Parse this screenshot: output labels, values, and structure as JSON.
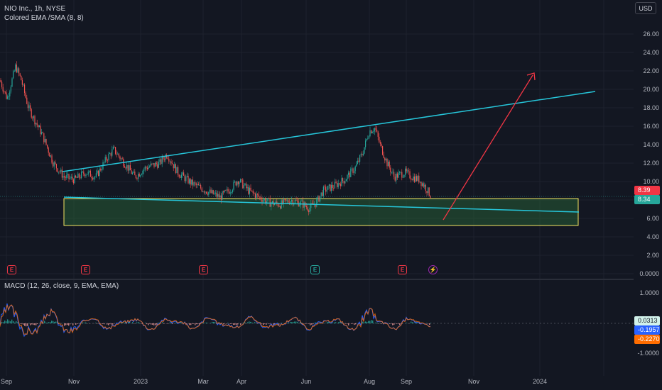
{
  "header": {
    "title": "NIO Inc., 1h, NYSE",
    "indicator": "Colored EMA /SMA (8, 8)",
    "currency_button": "USD"
  },
  "price_axis": {
    "labels": [
      "26.00",
      "24.00",
      "22.00",
      "20.00",
      "18.00",
      "16.00",
      "14.00",
      "12.00",
      "10.00",
      "8.00",
      "6.00",
      "4.00",
      "2.00",
      "0.0000"
    ],
    "current_price_badge": "8.39",
    "ema_badge": "8.34"
  },
  "time_axis": {
    "labels": [
      "Sep",
      "Nov",
      "2023",
      "Mar",
      "Apr",
      "Jun",
      "Aug",
      "Sep",
      "Nov",
      "2024"
    ]
  },
  "events": {
    "earnings_label": "E",
    "lightning_label": "⚡"
  },
  "macd": {
    "title": "MACD (12, 26, close, 9, EMA, EMA)",
    "axis_labels": [
      "1.0000",
      "-1.0000"
    ],
    "histogram_badge": "0.0313",
    "macd_badge": "-0.1957",
    "signal_badge": "-0.2270"
  },
  "colors": {
    "background": "#131722",
    "up_candle": "#26a69a",
    "down_candle": "#ef5350",
    "trendline": "#26c6da",
    "arrow": "#f23645",
    "zone_fill": "#2a6b3a",
    "zone_border": "#f5e663",
    "macd_line": "#2962ff",
    "signal_line": "#ff6d00"
  }
}
